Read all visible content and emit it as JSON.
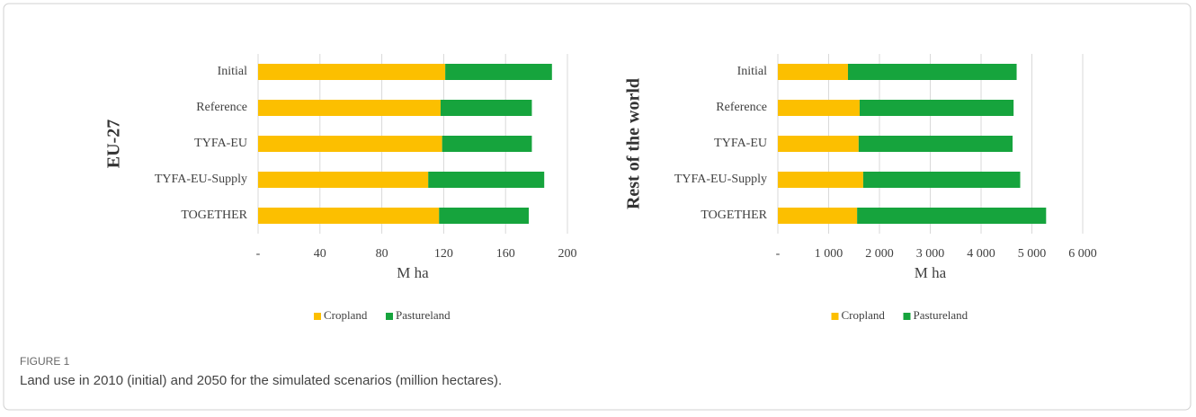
{
  "chart_data": [
    {
      "type": "stacked_barh",
      "ylabel": "EU-27",
      "xlabel": "M ha",
      "categories": [
        "Initial",
        "Reference",
        "TYFA-EU",
        "TYFA-EU-Supply",
        "TOGETHER"
      ],
      "series": [
        {
          "name": "Cropland",
          "color": "#fcbf00",
          "values": [
            121,
            118,
            119,
            110,
            117
          ]
        },
        {
          "name": "Pastureland",
          "color": "#16a43d",
          "values": [
            69,
            59,
            58,
            75,
            58
          ]
        }
      ],
      "xlim": [
        0,
        200
      ],
      "xticks": [
        {
          "value": 0,
          "label": "-"
        },
        40,
        80,
        120,
        160,
        200
      ],
      "grid": true
    },
    {
      "type": "stacked_barh",
      "ylabel": "Rest of the world",
      "xlabel": "M ha",
      "categories": [
        "Initial",
        "Reference",
        "TYFA-EU",
        "TYFA-EU-Supply",
        "TOGETHER"
      ],
      "series": [
        {
          "name": "Cropland",
          "color": "#fcbf00",
          "values": [
            1380,
            1610,
            1590,
            1680,
            1560
          ]
        },
        {
          "name": "Pastureland",
          "color": "#16a43d",
          "values": [
            3320,
            3030,
            3030,
            3090,
            3720
          ]
        }
      ],
      "xlim": [
        0,
        6000
      ],
      "xticks": [
        {
          "value": 0,
          "label": "-"
        },
        {
          "value": 1000,
          "label": "1 000"
        },
        {
          "value": 2000,
          "label": "2 000"
        },
        {
          "value": 3000,
          "label": "3 000"
        },
        {
          "value": 4000,
          "label": "4 000"
        },
        {
          "value": 5000,
          "label": "5 000"
        },
        {
          "value": 6000,
          "label": "6 000"
        }
      ],
      "grid": true
    }
  ],
  "figure": {
    "label": "FIGURE 1",
    "caption": "Land use in 2010 (initial) and 2050 for the simulated scenarios (million hectares)."
  }
}
